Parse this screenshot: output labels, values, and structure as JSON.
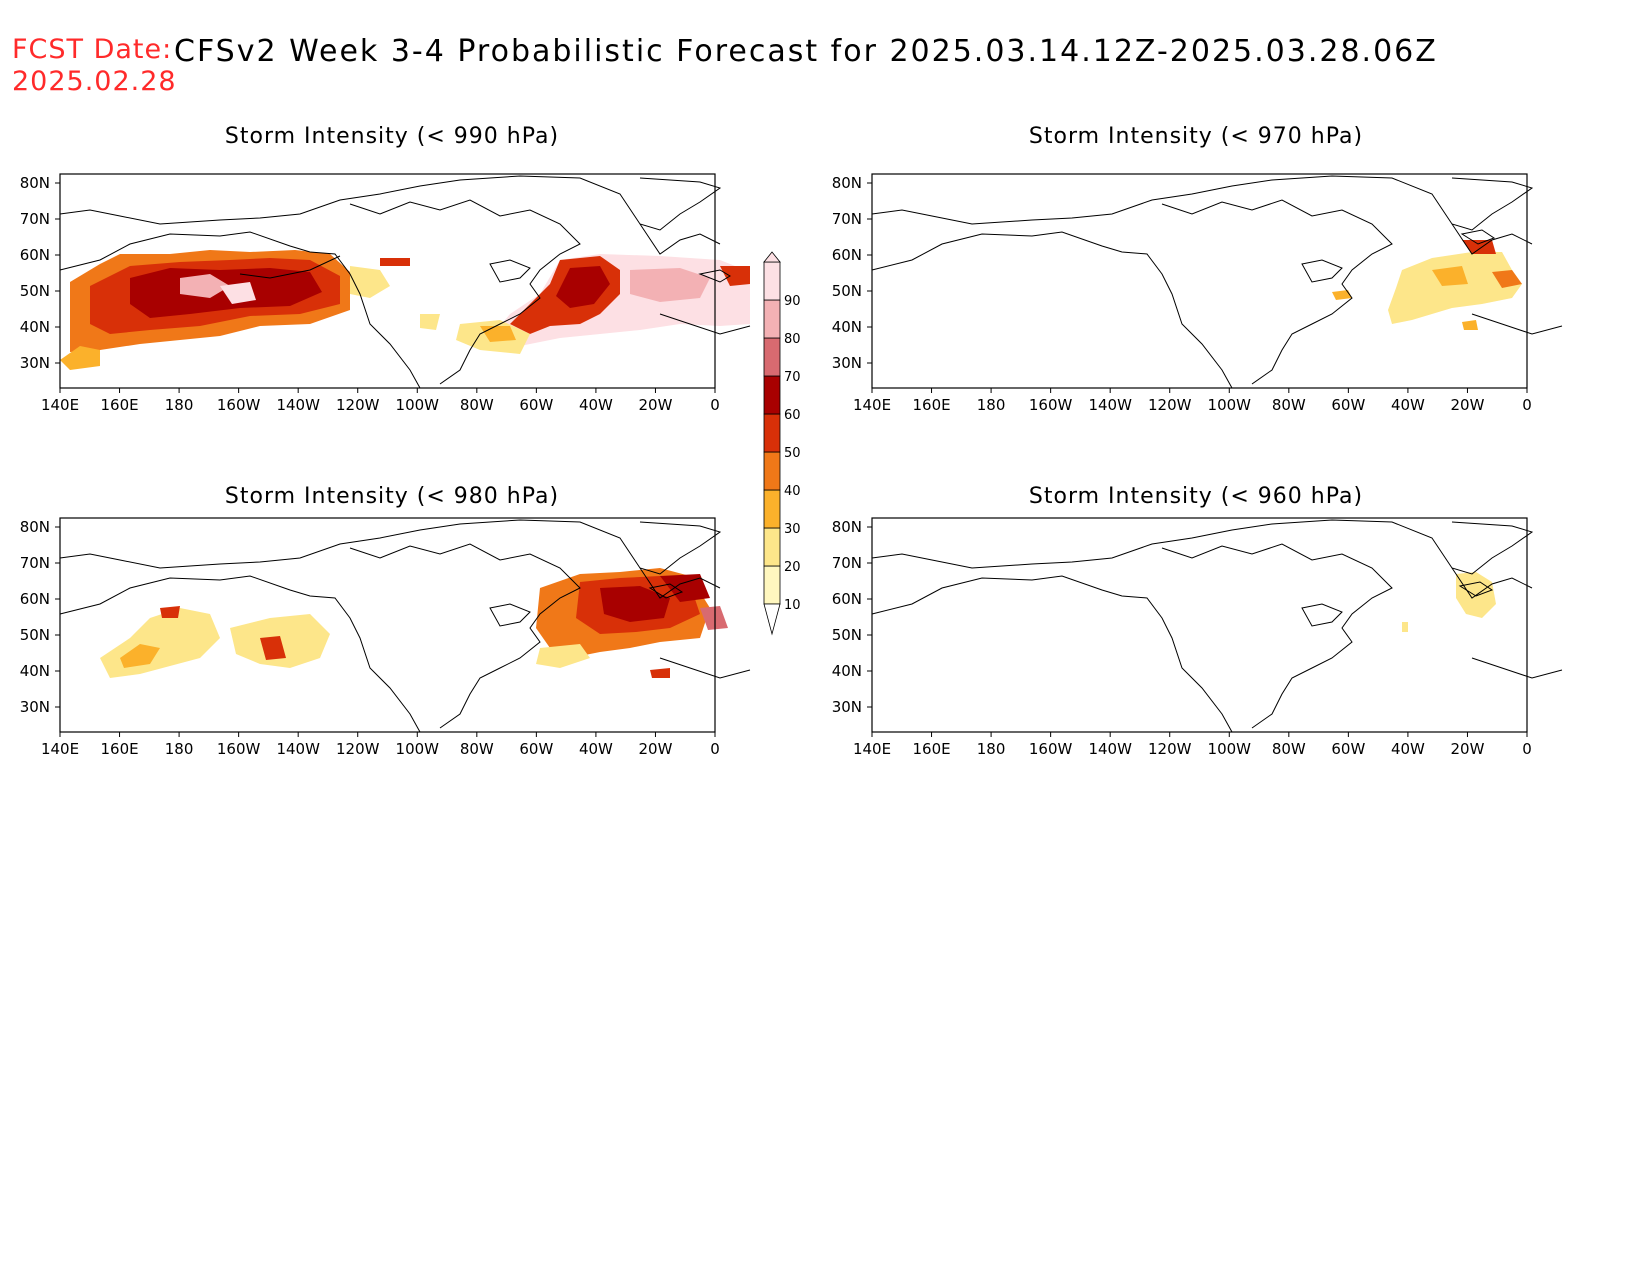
{
  "header": {
    "fcst_label": "FCST Date:",
    "fcst_date": "2025.02.28",
    "title": "CFSv2 Week 3-4 Probabilistic Forecast for 2025.03.14.12Z-2025.03.28.06Z"
  },
  "panels": [
    {
      "title": "Storm Intensity (< 990 hPa)"
    },
    {
      "title": "Storm Intensity (< 970 hPa)"
    },
    {
      "title": "Storm Intensity (< 980 hPa)"
    },
    {
      "title": "Storm Intensity (< 960 hPa)"
    }
  ],
  "axes": {
    "lon_labels": [
      "140E",
      "160E",
      "180",
      "160W",
      "140W",
      "120W",
      "100W",
      "80W",
      "60W",
      "40W",
      "20W",
      "0"
    ],
    "lat_labels": [
      "80N",
      "70N",
      "60N",
      "50N",
      "40N",
      "30N"
    ]
  },
  "colorbar": {
    "labels": [
      "10",
      "20",
      "30",
      "40",
      "50",
      "60",
      "70",
      "80",
      "90"
    ],
    "colors": [
      "#fff7bf",
      "#fde68a",
      "#fbb12b",
      "#f07818",
      "#d83008",
      "#a80000",
      "#d86a70",
      "#f3b1b4",
      "#fde0e4"
    ]
  }
}
